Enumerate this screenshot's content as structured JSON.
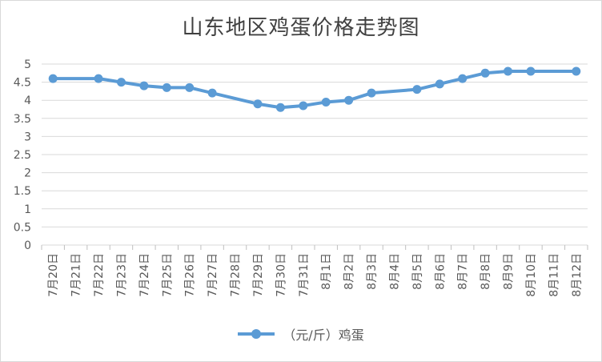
{
  "chart_data": {
    "type": "line",
    "title": "山东地区鸡蛋价格走势图",
    "categories": [
      "7月20日",
      "7月21日",
      "7月22日",
      "7月23日",
      "7月24日",
      "7月25日",
      "7月26日",
      "7月27日",
      "7月28日",
      "7月29日",
      "7月30日",
      "7月31日",
      "8月1日",
      "8月2日",
      "8月3日",
      "8月4日",
      "8月5日",
      "8月6日",
      "8月7日",
      "8月8日",
      "8月9日",
      "8月10日",
      "8月11日",
      "8月12日"
    ],
    "series": [
      {
        "name": "（元/斤）鸡蛋",
        "color": "#5b9bd5",
        "values": [
          4.6,
          null,
          4.6,
          4.5,
          4.4,
          4.35,
          4.35,
          4.2,
          null,
          3.9,
          3.8,
          3.85,
          3.95,
          4.0,
          4.2,
          null,
          4.3,
          4.45,
          4.6,
          4.75,
          4.8,
          4.8,
          null,
          4.8
        ]
      }
    ],
    "ylim": [
      0,
      5
    ],
    "yticks": [
      "0",
      "0.5",
      "1",
      "1.5",
      "2",
      "2.5",
      "3",
      "3.5",
      "4",
      "4.5",
      "5"
    ],
    "grid": true,
    "legend_position": "bottom"
  }
}
